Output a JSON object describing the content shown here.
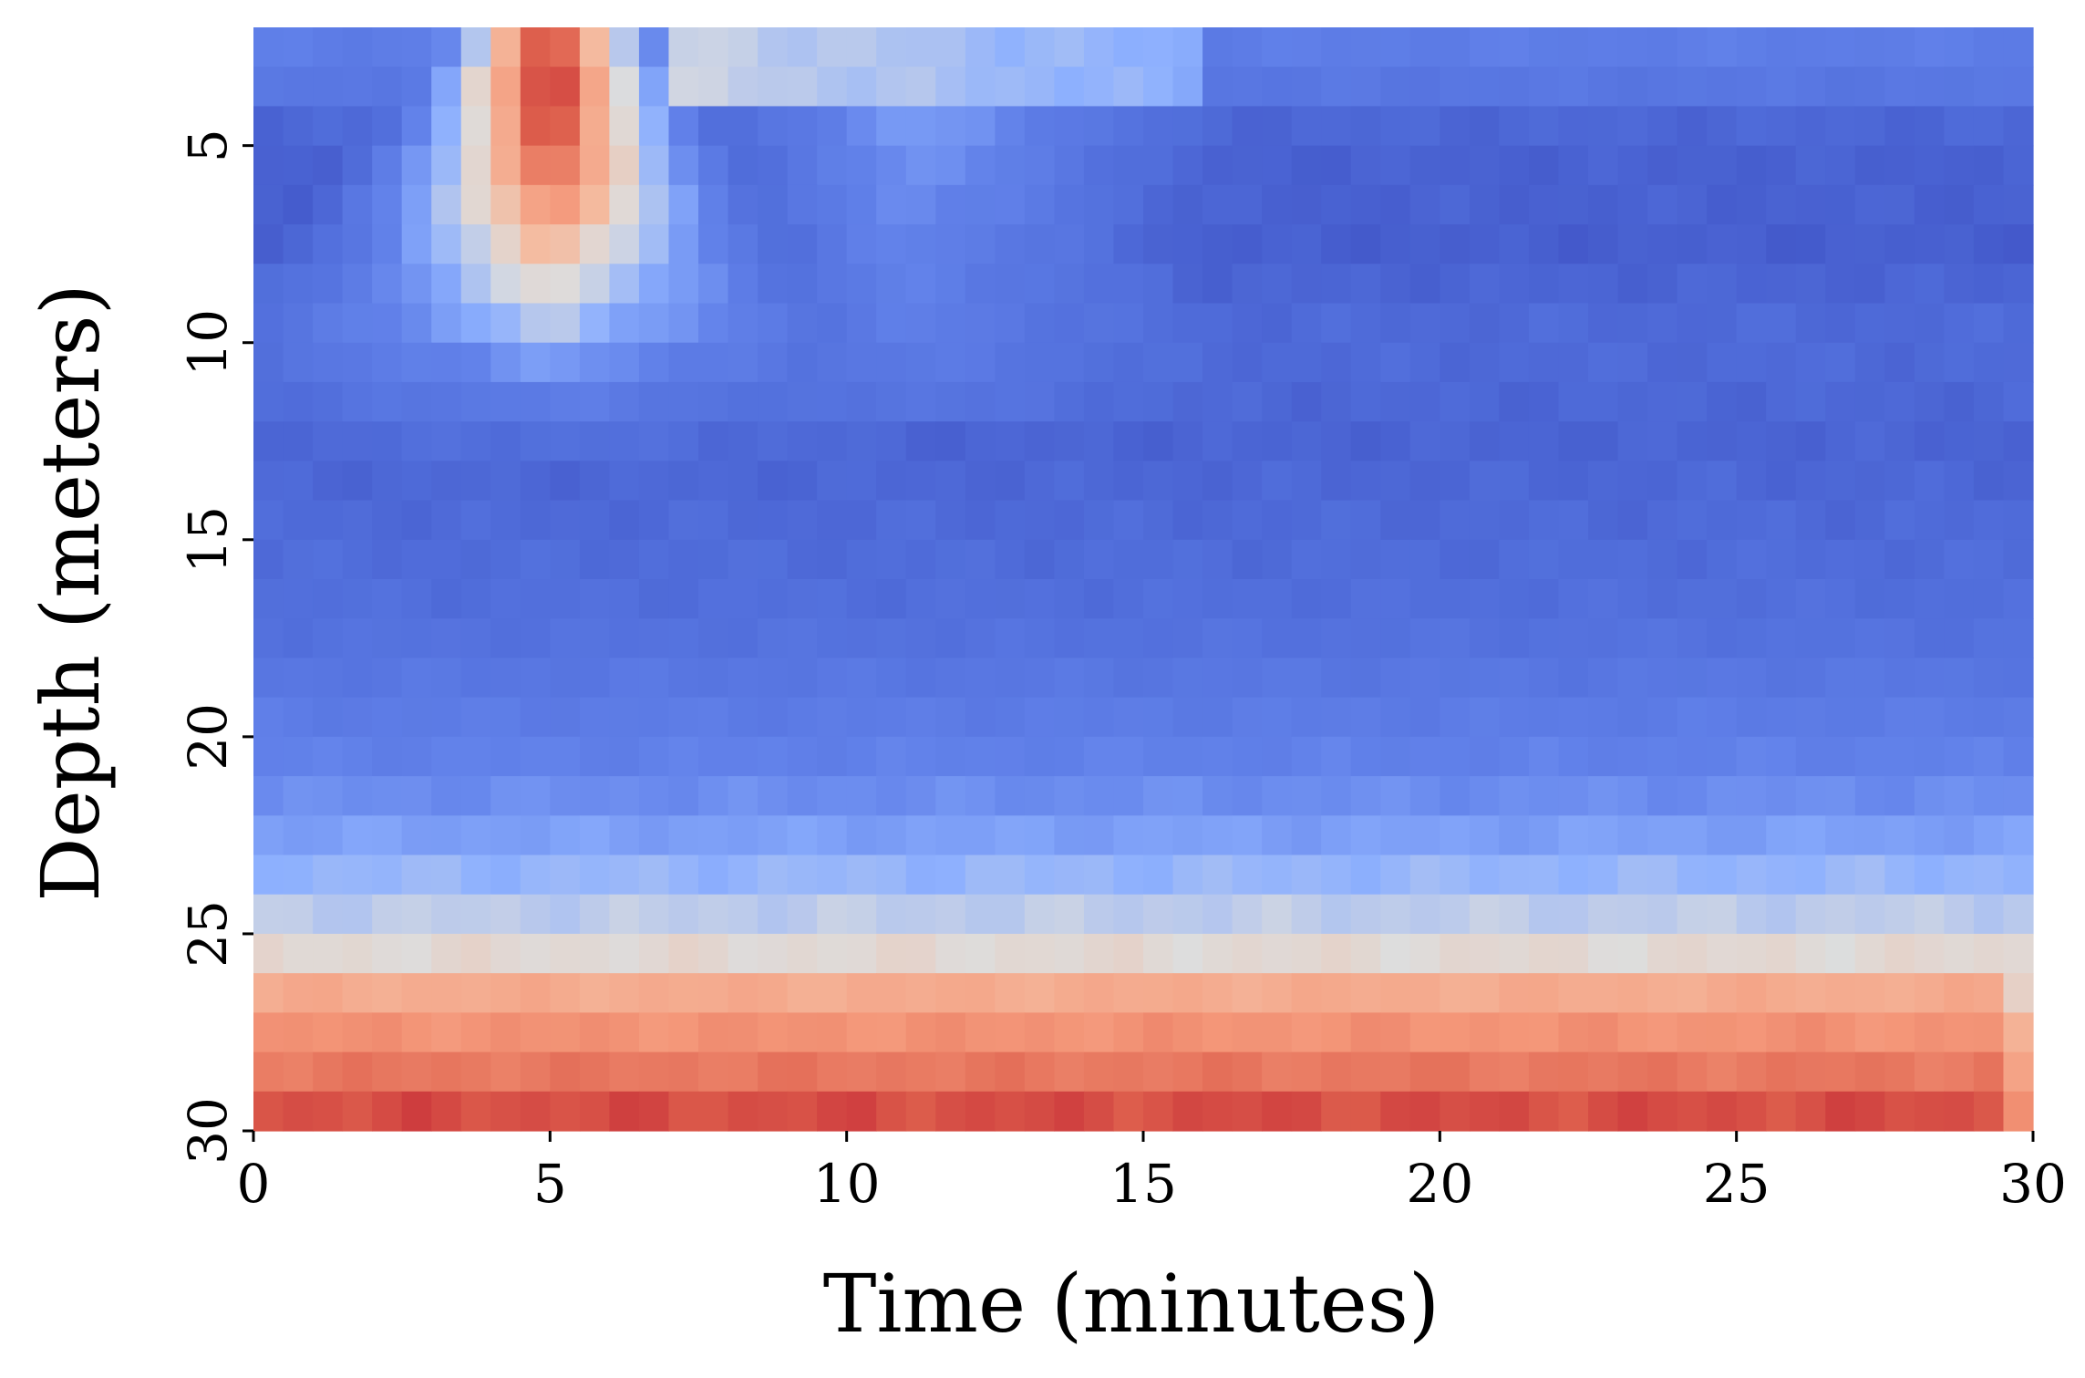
{
  "chart_data": {
    "type": "heatmap",
    "title": "",
    "xlabel": "Time (minutes)",
    "ylabel": "Depth (meters)",
    "xlim": [
      0,
      30
    ],
    "ylim": [
      30,
      2
    ],
    "x_ticks": [
      "0",
      "5",
      "10",
      "15",
      "20",
      "25",
      "30"
    ],
    "y_ticks": [
      "5",
      "10",
      "15",
      "20",
      "25",
      "30"
    ],
    "x_tick_values": [
      0,
      5,
      10,
      15,
      20,
      25,
      30
    ],
    "y_tick_values": [
      5,
      10,
      15,
      20,
      25,
      30
    ],
    "colormap": "coolwarm",
    "value_range": [
      0,
      1
    ],
    "grid": false,
    "colorbar": false,
    "time_bins": 60,
    "depth_rows": [
      {
        "depth": 2.5,
        "base": 0.22,
        "plume": 1.0
      },
      {
        "depth": 3.5,
        "base": 0.18,
        "plume": 1.0
      },
      {
        "depth": 4.5,
        "base": 0.1,
        "plume": 0.95
      },
      {
        "depth": 5.5,
        "base": 0.08,
        "plume": 0.88
      },
      {
        "depth": 6.5,
        "base": 0.08,
        "plume": 0.78
      },
      {
        "depth": 7.5,
        "base": 0.07,
        "plume": 0.66
      },
      {
        "depth": 8.5,
        "base": 0.09,
        "plume": 0.55
      },
      {
        "depth": 9.5,
        "base": 0.11,
        "plume": 0.45
      },
      {
        "depth": 10.5,
        "base": 0.11,
        "plume": 0.32
      },
      {
        "depth": 11.5,
        "base": 0.1,
        "plume": 0.22
      },
      {
        "depth": 12.5,
        "base": 0.09,
        "plume": 0.14
      },
      {
        "depth": 13.5,
        "base": 0.1,
        "plume": 0.08
      },
      {
        "depth": 14.5,
        "base": 0.11,
        "plume": 0.05
      },
      {
        "depth": 15.5,
        "base": 0.12,
        "plume": 0.02
      },
      {
        "depth": 16.5,
        "base": 0.13,
        "plume": 0.0
      },
      {
        "depth": 17.5,
        "base": 0.15,
        "plume": 0.0
      },
      {
        "depth": 18.5,
        "base": 0.18,
        "plume": 0.0
      },
      {
        "depth": 19.5,
        "base": 0.21,
        "plume": 0.0
      },
      {
        "depth": 20.5,
        "base": 0.24,
        "plume": 0.0
      },
      {
        "depth": 21.5,
        "base": 0.28,
        "plume": 0.0
      },
      {
        "depth": 22.5,
        "base": 0.33,
        "plume": 0.0
      },
      {
        "depth": 23.5,
        "base": 0.39,
        "plume": 0.0
      },
      {
        "depth": 24.5,
        "base": 0.45,
        "plume": 0.0
      },
      {
        "depth": 25.5,
        "base": 0.52,
        "plume": 0.0
      },
      {
        "depth": 26.5,
        "base": 0.68,
        "plume": 0.0
      },
      {
        "depth": 27.5,
        "base": 0.76,
        "plume": 0.0
      },
      {
        "depth": 28.5,
        "base": 0.82,
        "plume": 0.0
      },
      {
        "depth": 29.5,
        "base": 0.9,
        "plume": 0.0
      }
    ],
    "plume": {
      "center_time": 5.0,
      "spread_per_meter": 0.28,
      "min_half_width": 0.9
    },
    "shallow_recovery": {
      "start_time": 8.0,
      "peak_time": 11.0,
      "end_time": 16.0,
      "max_depth": 12.0,
      "value": 0.32
    }
  }
}
